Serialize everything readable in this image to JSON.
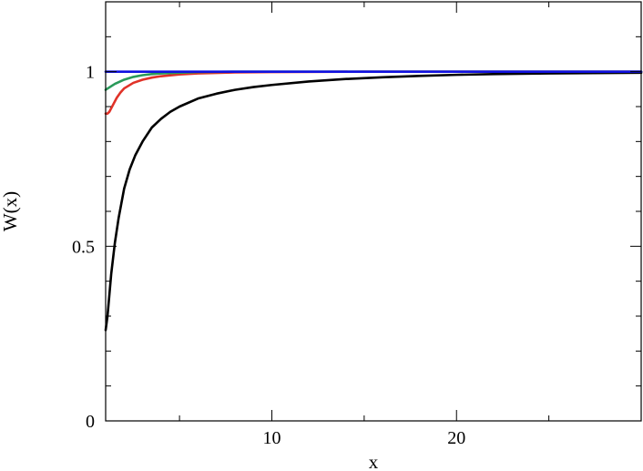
{
  "chart_data": {
    "type": "line",
    "title": "",
    "xlabel": "x",
    "ylabel": "W(x)",
    "xlim": [
      1,
      30
    ],
    "ylim": [
      0,
      1.2
    ],
    "x_ticks": [
      10,
      20
    ],
    "y_ticks": [
      0,
      0.5,
      1
    ],
    "x_tick_labels": [
      "10",
      "20"
    ],
    "y_tick_labels": [
      "0",
      "0.5",
      "1"
    ],
    "x_minor_ticks": [
      5,
      15,
      25
    ],
    "y_minor_ticks": [
      0.1,
      0.2,
      0.3,
      0.4,
      0.6,
      0.7,
      0.8,
      0.9,
      1.1
    ],
    "grid": false,
    "legend": "none",
    "series": [
      {
        "color": "#000000",
        "x": [
          1,
          1.1,
          1.2,
          1.3,
          1.5,
          1.7,
          2,
          2.3,
          2.6,
          3,
          3.5,
          4,
          4.5,
          5,
          6,
          7,
          8,
          9,
          10,
          12,
          14,
          16,
          18,
          20,
          22,
          25,
          30
        ],
        "y": [
          0.26,
          0.3,
          0.36,
          0.42,
          0.51,
          0.58,
          0.665,
          0.72,
          0.76,
          0.8,
          0.84,
          0.865,
          0.885,
          0.9,
          0.923,
          0.937,
          0.948,
          0.956,
          0.962,
          0.972,
          0.979,
          0.984,
          0.988,
          0.991,
          0.993,
          0.995,
          0.997
        ]
      },
      {
        "color": "#e03228",
        "x": [
          1,
          1.1,
          1.2,
          1.4,
          1.6,
          1.8,
          2,
          2.5,
          3,
          3.5,
          4,
          5,
          6,
          8,
          10,
          15,
          20,
          30
        ],
        "y": [
          0.88,
          0.88,
          0.885,
          0.905,
          0.925,
          0.94,
          0.952,
          0.968,
          0.977,
          0.983,
          0.987,
          0.992,
          0.995,
          0.998,
          0.999,
          1.0,
          1.0,
          1.0
        ]
      },
      {
        "color": "#2a9a5a",
        "x": [
          1,
          1.2,
          1.5,
          2,
          2.5,
          3,
          3.5,
          4,
          5,
          6,
          8,
          10,
          15,
          20,
          30
        ],
        "y": [
          0.948,
          0.955,
          0.965,
          0.977,
          0.985,
          0.99,
          0.993,
          0.995,
          0.997,
          0.999,
          1.0,
          1.0,
          1.0,
          1.0,
          1.0
        ]
      },
      {
        "color": "#1010e0",
        "x": [
          1,
          30
        ],
        "y": [
          1.0,
          1.0
        ]
      }
    ]
  }
}
